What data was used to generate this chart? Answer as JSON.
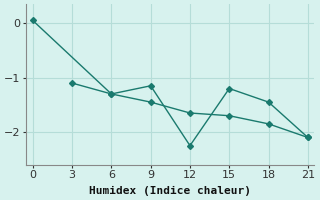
{
  "line1_x": [
    0,
    6,
    9,
    12,
    15,
    18,
    21
  ],
  "line1_y": [
    0.05,
    -1.3,
    -1.15,
    -2.25,
    -1.2,
    -1.45,
    -2.1
  ],
  "line2_x": [
    3,
    6,
    9,
    12,
    15,
    18,
    21
  ],
  "line2_y": [
    -1.1,
    -1.3,
    -1.45,
    -1.65,
    -1.7,
    -1.85,
    -2.1
  ],
  "line_color": "#1a7a6e",
  "bg_color": "#d7f2ee",
  "grid_color": "#b5ddd8",
  "xlabel": "Humidex (Indice chaleur)",
  "xlim": [
    -0.5,
    21.5
  ],
  "ylim": [
    -2.6,
    0.35
  ],
  "yticks": [
    0,
    -1,
    -2
  ],
  "xticks": [
    0,
    3,
    6,
    9,
    12,
    15,
    18,
    21
  ],
  "marker": "D",
  "marker_size": 3,
  "line_width": 1.0,
  "font_size": 8
}
